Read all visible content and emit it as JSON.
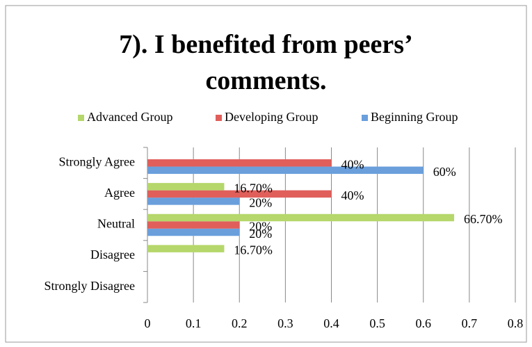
{
  "chart_data": {
    "type": "hbar",
    "title": "7). I benefited from peers’ comments.",
    "categories": [
      "Strongly Agree",
      "Agree",
      "Neutral",
      "Disagree",
      "Strongly Disagree"
    ],
    "series": [
      {
        "name": "Beginning Group",
        "color": "#6a9fdc",
        "values": [
          0.6,
          0.2,
          0.2,
          null,
          null
        ],
        "value_labels": [
          "60%",
          "20%",
          "20%",
          null,
          null
        ]
      },
      {
        "name": "Developing Group",
        "color": "#e05f5b",
        "values": [
          0.4,
          0.4,
          0.2,
          null,
          null
        ],
        "value_labels": [
          "40%",
          "40%",
          "20%",
          null,
          null
        ]
      },
      {
        "name": "Advanced Group",
        "color": "#b5d76b",
        "values": [
          null,
          0.167,
          0.667,
          0.167,
          null
        ],
        "value_labels": [
          null,
          "16.70%",
          "66.70%",
          "16.70%",
          null
        ]
      }
    ],
    "xlim": [
      0,
      0.8
    ],
    "xticks": [
      0,
      0.1,
      0.2,
      0.3,
      0.4,
      0.5,
      0.6,
      0.7,
      0.8
    ],
    "grid": true,
    "legend": "top"
  }
}
